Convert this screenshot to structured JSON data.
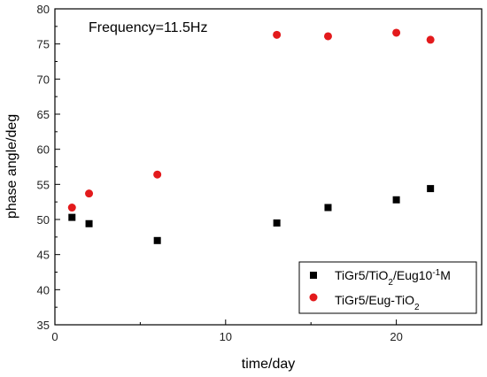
{
  "chart_data": {
    "type": "scatter",
    "annotation": "Frequency=11.5Hz",
    "xlabel": "time/day",
    "ylabel": "phase angle/deg",
    "xlim": [
      0,
      25
    ],
    "ylim": [
      35,
      80
    ],
    "x_ticks": [
      0,
      10,
      20
    ],
    "y_ticks": [
      35,
      40,
      45,
      50,
      55,
      60,
      65,
      70,
      75,
      80
    ],
    "grid": false,
    "legend_position": "bottom-right",
    "series": [
      {
        "name_parts": [
          "TiGr5/TiO",
          "2",
          "/Eug10",
          "-1",
          "M"
        ],
        "marker": "square",
        "color": "#000000",
        "points": [
          [
            1,
            50.3
          ],
          [
            2,
            49.4
          ],
          [
            6,
            47.0
          ],
          [
            13,
            49.5
          ],
          [
            16,
            51.7
          ],
          [
            20,
            52.8
          ],
          [
            22,
            54.4
          ]
        ]
      },
      {
        "name_parts": [
          "TiGr5/Eug-TiO",
          "2"
        ],
        "marker": "circle",
        "color": "#e31a1c",
        "points": [
          [
            1,
            51.7
          ],
          [
            2,
            53.7
          ],
          [
            6,
            56.4
          ],
          [
            13,
            76.3
          ],
          [
            16,
            76.1
          ],
          [
            20,
            76.6
          ],
          [
            22,
            75.6
          ]
        ]
      }
    ]
  }
}
